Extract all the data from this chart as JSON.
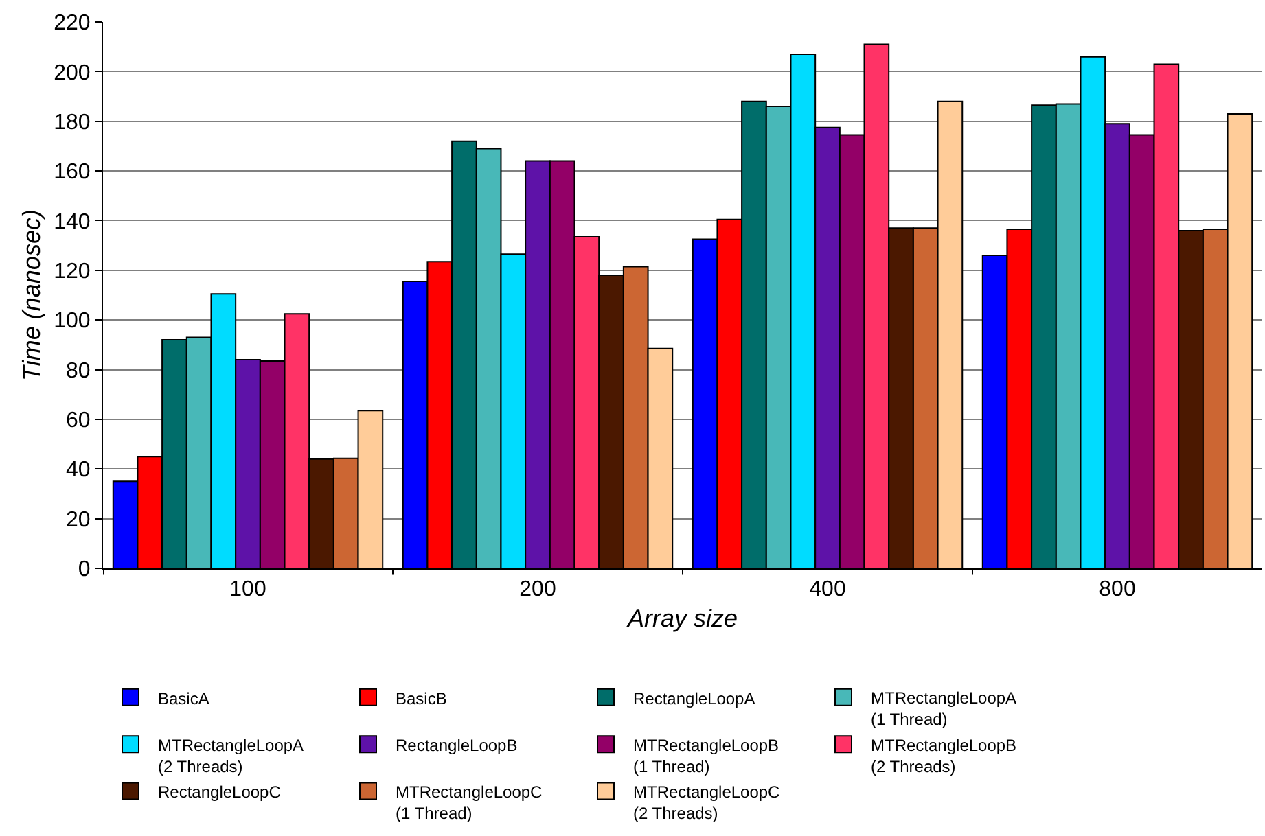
{
  "chart_data": {
    "type": "bar",
    "xlabel": "Array size",
    "ylabel": "Time (nanosec)",
    "categories": [
      "100",
      "200",
      "400",
      "800"
    ],
    "ylim": [
      0,
      220
    ],
    "yticks": [
      0,
      20,
      40,
      60,
      80,
      100,
      120,
      140,
      160,
      180,
      200,
      220
    ],
    "grid": "y",
    "legend": "bottom",
    "series": [
      {
        "name": "BasicA",
        "color": "#0000ff",
        "values": [
          35,
          115.5,
          132.5,
          126
        ]
      },
      {
        "name": "BasicB",
        "color": "#ff0000",
        "values": [
          45,
          123.5,
          140.5,
          136.5
        ]
      },
      {
        "name": "RectangleLoopA",
        "color": "#006d6a",
        "values": [
          92,
          172,
          188,
          186.5
        ]
      },
      {
        "name": "MTRectangleLoopA\n(1 Thread)",
        "color": "#48b8b8",
        "values": [
          93,
          169,
          186,
          187
        ]
      },
      {
        "name": "MTRectangleLoopA\n(2 Threads)",
        "color": "#00dcff",
        "values": [
          110.5,
          126.5,
          207,
          206
        ]
      },
      {
        "name": "RectangleLoopB",
        "color": "#5e12a8",
        "values": [
          84,
          164,
          177.5,
          179
        ]
      },
      {
        "name": "MTRectangleLoopB\n(1 Thread)",
        "color": "#930067",
        "values": [
          83.5,
          164,
          174.5,
          174.5
        ]
      },
      {
        "name": "MTRectangleLoopB\n(2 Threads)",
        "color": "#ff3366",
        "values": [
          102.5,
          133.5,
          211,
          203
        ]
      },
      {
        "name": "RectangleLoopC",
        "color": "#4b1800",
        "values": [
          44,
          118,
          137,
          136
        ]
      },
      {
        "name": "MTRectangleLoopC\n(1 Thread)",
        "color": "#cc6633",
        "values": [
          44.3,
          121.5,
          137,
          136.5
        ]
      },
      {
        "name": "MTRectangleLoopC\n(2 Threads)",
        "color": "#ffcc99",
        "values": [
          63.5,
          88.5,
          188,
          183
        ]
      }
    ]
  }
}
